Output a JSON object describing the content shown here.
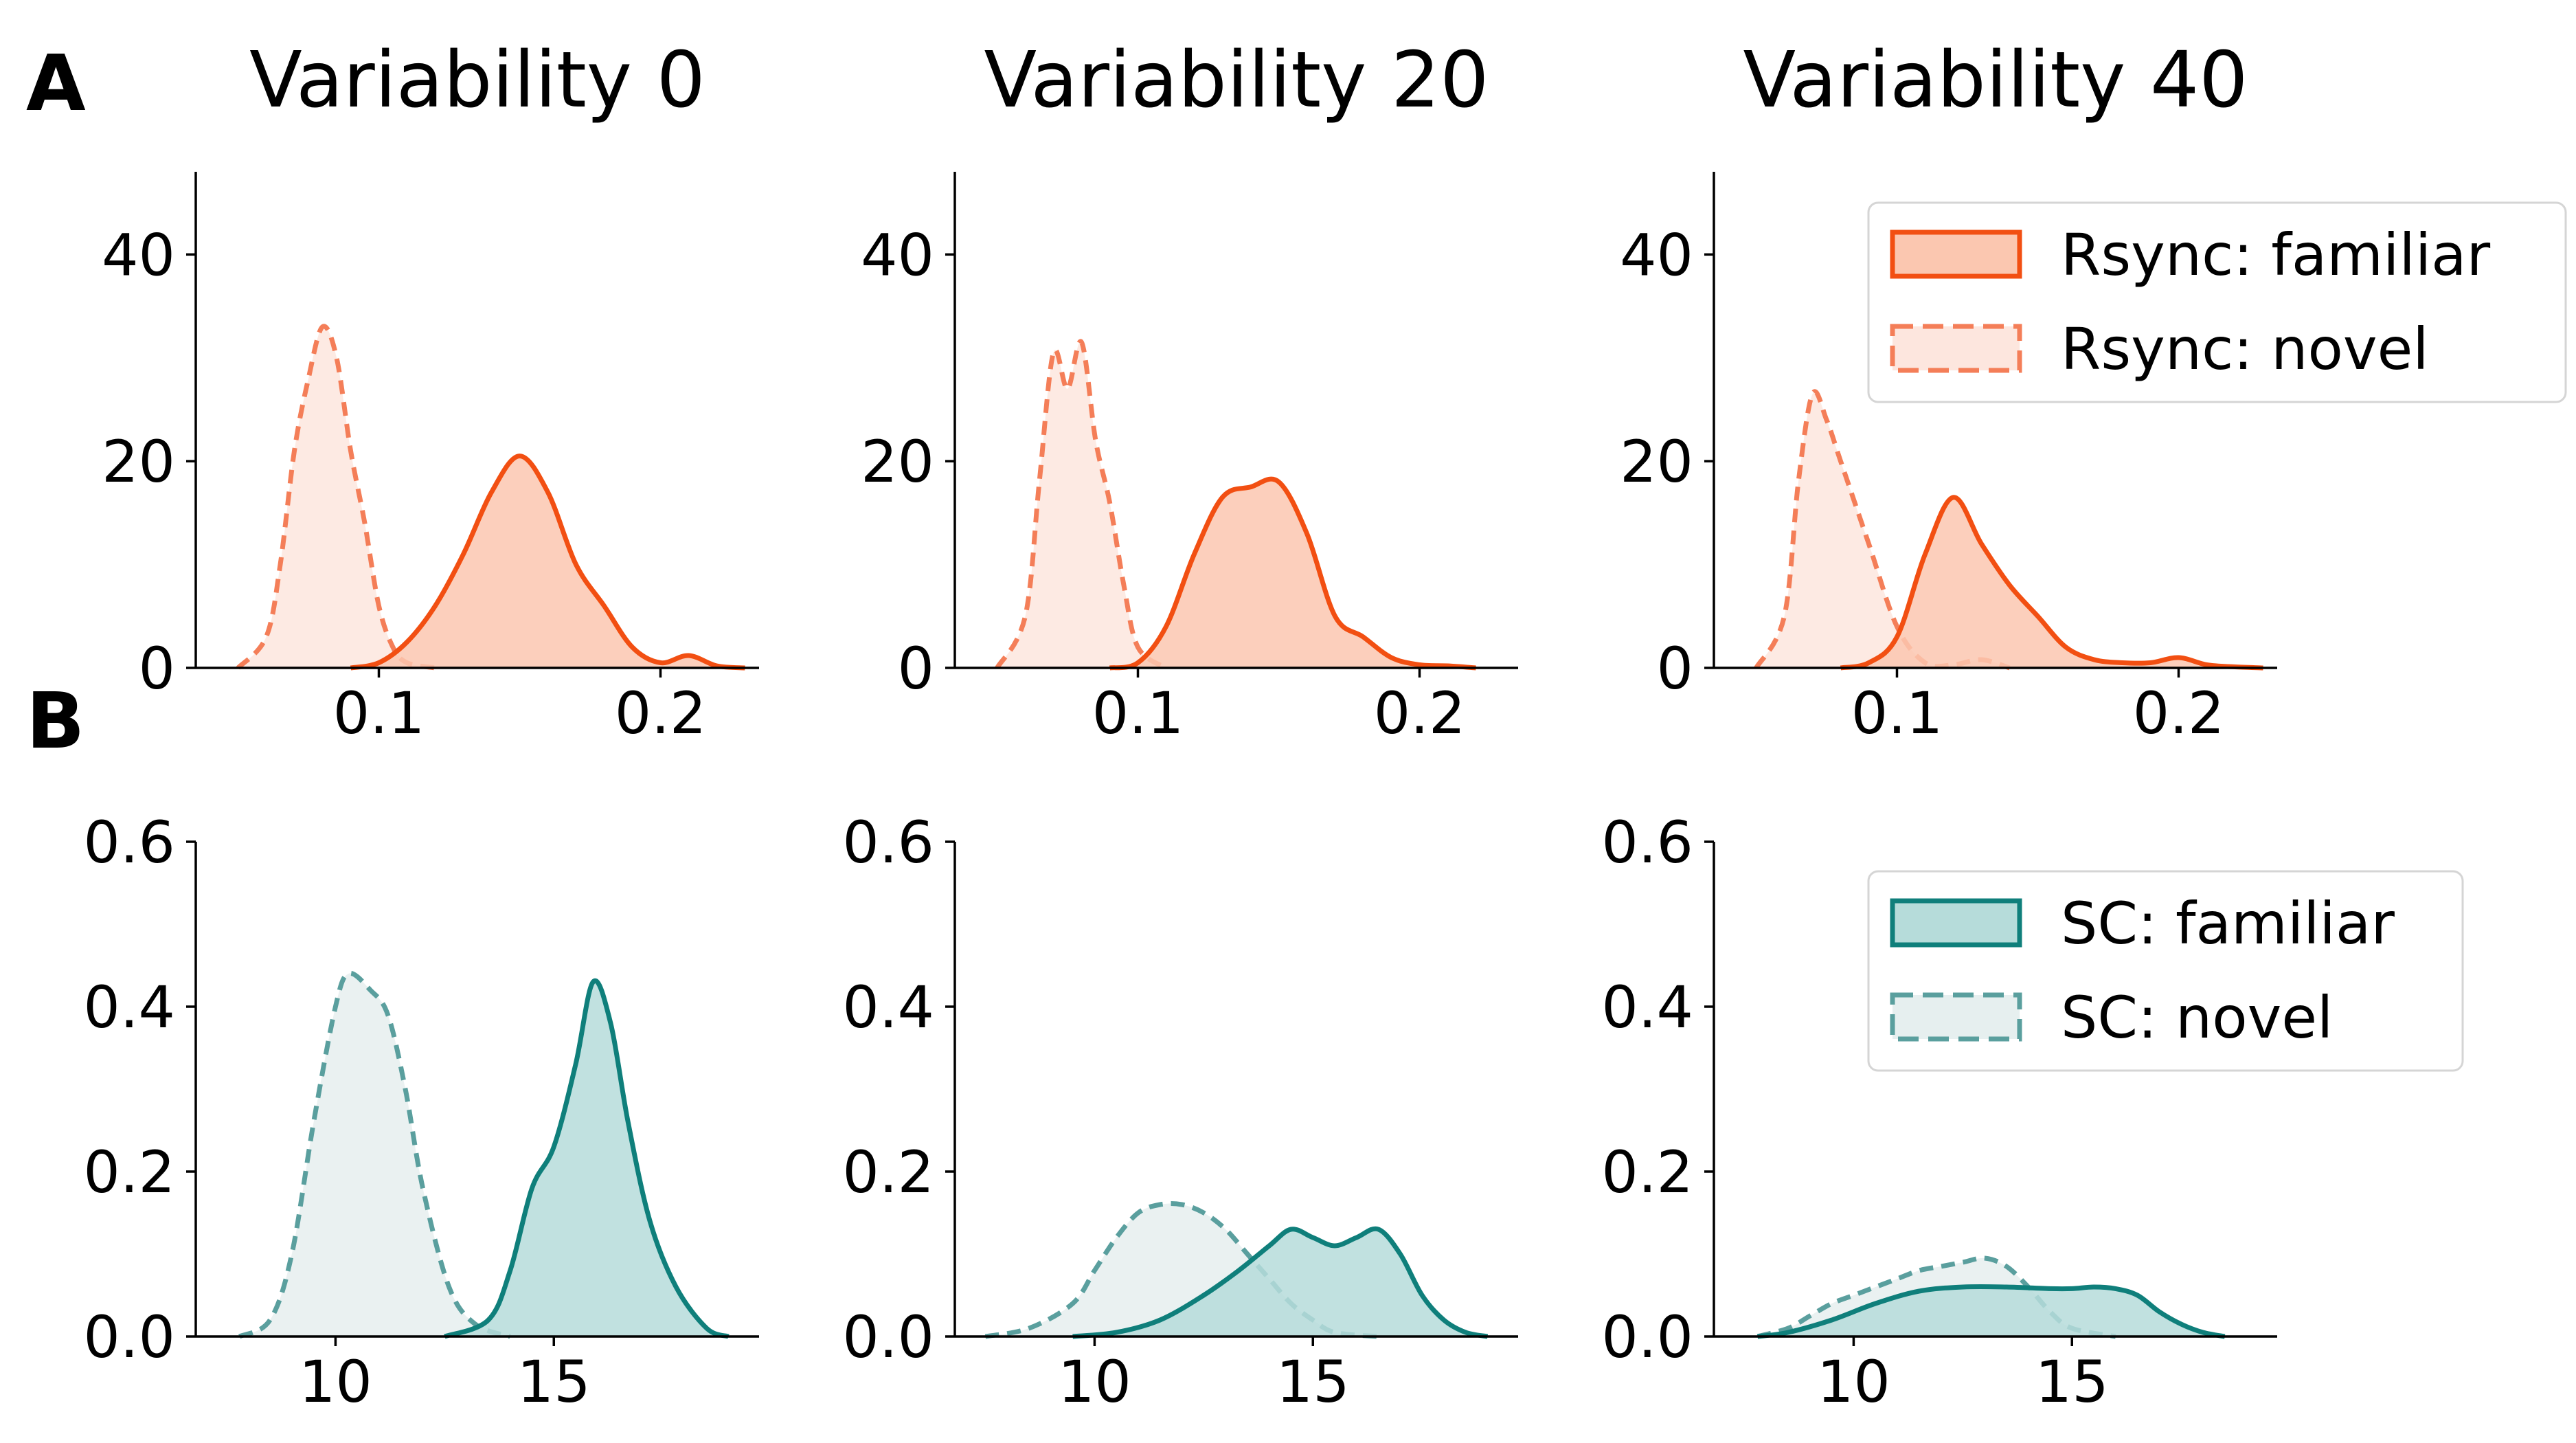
{
  "panel_labels": {
    "a": "A",
    "b": "B"
  },
  "colors": {
    "rsync_familiar": "#f24f12",
    "rsync_familiar_fill": "#fbc7b0",
    "rsync_novel": "#f47e58",
    "rsync_novel_fill": "#fde6de",
    "sc_familiar": "#0f7f7b",
    "sc_familiar_fill": "#b6dcda",
    "sc_novel": "#5a9f9e",
    "sc_novel_fill": "#e6efef"
  },
  "chart_data": [
    {
      "type": "area",
      "panel": "A",
      "title": "Variability 0",
      "xlim": [
        0.035,
        0.235
      ],
      "xticks": [
        0.1,
        0.2
      ],
      "xtick_labels": [
        "0.1",
        "0.2"
      ],
      "ylim": [
        0,
        48
      ],
      "yticks": [
        0,
        20,
        40
      ],
      "ytick_labels": [
        "0",
        "20",
        "40"
      ],
      "series": [
        {
          "name": "Rsync: familiar",
          "x": [
            0.09,
            0.1,
            0.11,
            0.12,
            0.13,
            0.14,
            0.15,
            0.16,
            0.17,
            0.18,
            0.19,
            0.2,
            0.21,
            0.22,
            0.23
          ],
          "y": [
            0,
            0.5,
            2.5,
            6,
            11,
            17,
            20.5,
            17,
            10,
            6,
            2,
            0.5,
            1.2,
            0.2,
            0
          ]
        },
        {
          "name": "Rsync: novel",
          "x": [
            0.05,
            0.06,
            0.065,
            0.07,
            0.075,
            0.08,
            0.085,
            0.09,
            0.095,
            0.1,
            0.105,
            0.11,
            0.12
          ],
          "y": [
            0,
            3,
            10,
            21,
            28,
            33,
            30,
            21,
            14,
            6,
            2,
            0.5,
            0
          ]
        }
      ]
    },
    {
      "type": "area",
      "panel": "A",
      "title": "Variability 20",
      "xlim": [
        0.035,
        0.235
      ],
      "xticks": [
        0.1,
        0.2
      ],
      "xtick_labels": [
        "0.1",
        "0.2"
      ],
      "ylim": [
        0,
        48
      ],
      "yticks": [
        0,
        20,
        40
      ],
      "ytick_labels": [
        "0",
        "20",
        "40"
      ],
      "series": [
        {
          "name": "Rsync: familiar",
          "x": [
            0.09,
            0.1,
            0.11,
            0.12,
            0.13,
            0.14,
            0.15,
            0.16,
            0.17,
            0.18,
            0.19,
            0.2,
            0.21,
            0.22
          ],
          "y": [
            0,
            0.5,
            4,
            11,
            16.5,
            17.5,
            18,
            13,
            5,
            3,
            1,
            0.3,
            0.2,
            0
          ]
        },
        {
          "name": "Rsync: novel",
          "x": [
            0.05,
            0.06,
            0.065,
            0.07,
            0.075,
            0.08,
            0.085,
            0.09,
            0.095,
            0.1,
            0.11
          ],
          "y": [
            0,
            5,
            18,
            30.5,
            27,
            31.5,
            22,
            16,
            8,
            2,
            0
          ]
        }
      ]
    },
    {
      "type": "area",
      "panel": "A",
      "title": "Variability 40",
      "xlim": [
        0.035,
        0.235
      ],
      "xticks": [
        0.1,
        0.2
      ],
      "xtick_labels": [
        "0.1",
        "0.2"
      ],
      "ylim": [
        0,
        48
      ],
      "yticks": [
        0,
        20,
        40
      ],
      "ytick_labels": [
        "0",
        "20",
        "40"
      ],
      "series": [
        {
          "name": "Rsync: familiar",
          "x": [
            0.08,
            0.09,
            0.1,
            0.11,
            0.12,
            0.13,
            0.14,
            0.15,
            0.16,
            0.17,
            0.18,
            0.19,
            0.2,
            0.21,
            0.22,
            0.23
          ],
          "y": [
            0,
            0.5,
            3,
            11,
            16.5,
            12,
            8,
            5,
            2,
            0.8,
            0.5,
            0.5,
            1,
            0.3,
            0.1,
            0
          ]
        },
        {
          "name": "Rsync: novel",
          "x": [
            0.05,
            0.06,
            0.065,
            0.07,
            0.075,
            0.08,
            0.09,
            0.1,
            0.11,
            0.12,
            0.13,
            0.14
          ],
          "y": [
            0,
            5,
            18,
            26.5,
            24,
            20,
            12,
            4,
            0.5,
            0.3,
            0.8,
            0
          ]
        }
      ]
    },
    {
      "type": "area",
      "panel": "B",
      "title": "",
      "xlim": [
        6.8,
        19.7
      ],
      "xticks": [
        10,
        15
      ],
      "xtick_labels": [
        "10",
        "15"
      ],
      "ylim": [
        0,
        0.6
      ],
      "yticks": [
        0,
        0.2,
        0.4,
        0.6
      ],
      "ytick_labels": [
        "0.0",
        "0.2",
        "0.4",
        "0.6"
      ],
      "series": [
        {
          "name": "SC: familiar",
          "x": [
            12.5,
            13.5,
            14.0,
            14.5,
            15.0,
            15.5,
            15.9,
            16.3,
            16.7,
            17.2,
            17.8,
            18.5,
            19.0
          ],
          "y": [
            0,
            0.02,
            0.08,
            0.18,
            0.23,
            0.33,
            0.43,
            0.38,
            0.26,
            0.14,
            0.06,
            0.01,
            0
          ]
        },
        {
          "name": "SC: novel",
          "x": [
            7.8,
            8.5,
            9.0,
            9.5,
            10.0,
            10.3,
            10.8,
            11.2,
            11.6,
            12.0,
            12.6,
            13.2,
            14.0
          ],
          "y": [
            0,
            0.02,
            0.1,
            0.26,
            0.4,
            0.44,
            0.42,
            0.39,
            0.3,
            0.18,
            0.06,
            0.015,
            0
          ]
        }
      ]
    },
    {
      "type": "area",
      "panel": "B",
      "title": "",
      "xlim": [
        6.8,
        19.7
      ],
      "xticks": [
        10,
        15
      ],
      "xtick_labels": [
        "10",
        "15"
      ],
      "ylim": [
        0,
        0.6
      ],
      "yticks": [
        0,
        0.2,
        0.4,
        0.6
      ],
      "ytick_labels": [
        "0.0",
        "0.2",
        "0.4",
        "0.6"
      ],
      "series": [
        {
          "name": "SC: familiar",
          "x": [
            9.5,
            10.5,
            11.5,
            12.5,
            13.3,
            14.0,
            14.5,
            15.0,
            15.5,
            16.0,
            16.5,
            17.0,
            17.5,
            18.0,
            18.5,
            19.0
          ],
          "y": [
            0,
            0.005,
            0.02,
            0.05,
            0.08,
            0.11,
            0.13,
            0.12,
            0.11,
            0.12,
            0.13,
            0.1,
            0.05,
            0.02,
            0.005,
            0
          ]
        },
        {
          "name": "SC: novel",
          "x": [
            7.5,
            8.5,
            9.5,
            10.0,
            10.5,
            11.0,
            11.5,
            12.0,
            12.5,
            13.0,
            13.5,
            14.0,
            14.5,
            15.0,
            15.5,
            16.5
          ],
          "y": [
            0,
            0.01,
            0.04,
            0.08,
            0.12,
            0.15,
            0.16,
            0.16,
            0.15,
            0.13,
            0.1,
            0.07,
            0.04,
            0.02,
            0.005,
            0
          ]
        }
      ]
    },
    {
      "type": "area",
      "panel": "B",
      "title": "",
      "xlim": [
        6.8,
        19.7
      ],
      "xticks": [
        10,
        15
      ],
      "xtick_labels": [
        "10",
        "15"
      ],
      "ylim": [
        0,
        0.6
      ],
      "yticks": [
        0,
        0.2,
        0.4,
        0.6
      ],
      "ytick_labels": [
        "0.0",
        "0.2",
        "0.4",
        "0.6"
      ],
      "series": [
        {
          "name": "SC: familiar",
          "x": [
            7.8,
            8.5,
            9.5,
            10.5,
            11.5,
            12.5,
            13.5,
            14.5,
            15.0,
            15.5,
            16.0,
            16.5,
            17.0,
            17.5,
            18.0,
            18.5
          ],
          "y": [
            0,
            0.005,
            0.02,
            0.04,
            0.055,
            0.06,
            0.06,
            0.058,
            0.058,
            0.06,
            0.058,
            0.05,
            0.03,
            0.015,
            0.005,
            0
          ]
        },
        {
          "name": "SC: novel",
          "x": [
            7.8,
            8.5,
            9.0,
            9.5,
            10.0,
            10.5,
            11.0,
            11.5,
            12.0,
            12.5,
            13.0,
            13.5,
            14.0,
            14.5,
            15.0,
            16.0
          ],
          "y": [
            0,
            0.01,
            0.025,
            0.04,
            0.05,
            0.06,
            0.07,
            0.08,
            0.085,
            0.09,
            0.095,
            0.085,
            0.06,
            0.03,
            0.01,
            0
          ]
        }
      ]
    }
  ],
  "legends": [
    {
      "panel": "A",
      "entries": [
        "Rsync: familiar",
        "Rsync: novel"
      ]
    },
    {
      "panel": "B",
      "entries": [
        "SC: familiar",
        "SC: novel"
      ]
    }
  ]
}
